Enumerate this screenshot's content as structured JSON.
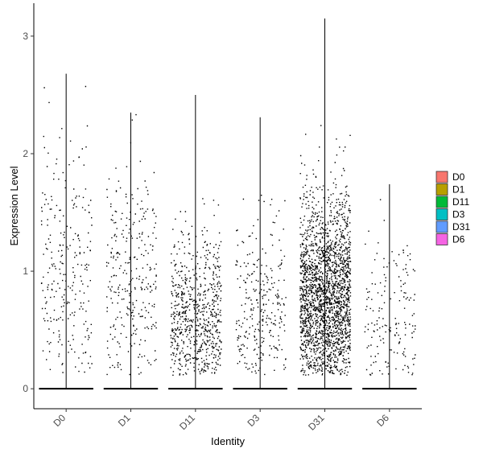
{
  "chart_data": {
    "type": "scatter",
    "subtype": "violin-jitter",
    "title": "",
    "xlabel": "Identity",
    "ylabel": "Expression Level",
    "ylim": [
      -0.17,
      3.28
    ],
    "yticks": [
      0,
      1,
      2,
      3
    ],
    "grid": false,
    "legend_position": "right",
    "categories": [
      "D0",
      "D1",
      "D11",
      "D3",
      "D31",
      "D6"
    ],
    "series": [
      {
        "name": "D0",
        "color": "#F8766D",
        "max": 2.68,
        "nonzero_cells": 260,
        "mean_nonzero": 1.05,
        "sd_nonzero": 0.6
      },
      {
        "name": "D1",
        "color": "#B79F00",
        "max": 2.35,
        "nonzero_cells": 300,
        "mean_nonzero": 0.85,
        "sd_nonzero": 0.55
      },
      {
        "name": "D11",
        "color": "#00BA38",
        "max": 2.5,
        "nonzero_cells": 700,
        "mean_nonzero": 0.55,
        "sd_nonzero": 0.38
      },
      {
        "name": "D3",
        "color": "#00BFC4",
        "max": 2.31,
        "nonzero_cells": 280,
        "mean_nonzero": 0.6,
        "sd_nonzero": 0.45
      },
      {
        "name": "D31",
        "color": "#619CFF",
        "max": 3.15,
        "nonzero_cells": 2200,
        "mean_nonzero": 0.75,
        "sd_nonzero": 0.45
      },
      {
        "name": "D6",
        "color": "#F564E3",
        "max": 1.74,
        "nonzero_cells": 170,
        "mean_nonzero": 0.55,
        "sd_nonzero": 0.38
      }
    ]
  }
}
